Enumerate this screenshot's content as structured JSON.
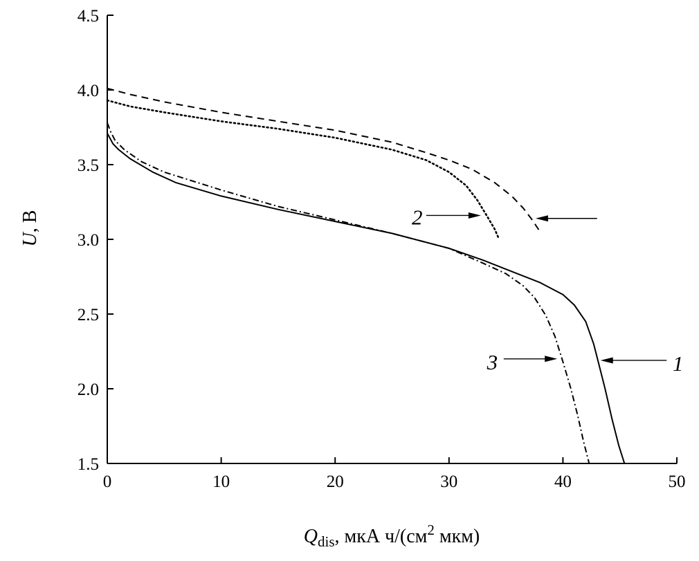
{
  "chart_data": {
    "type": "line",
    "title": "",
    "xlabel": {
      "symbol": "Q",
      "subscript": "dis",
      "units_before_sup": ", мкА ч/(см",
      "superscript": "2",
      "units_after_sup": " мкм)"
    },
    "ylabel": {
      "symbol": "U",
      "units": ", В"
    },
    "xlim": [
      0,
      50
    ],
    "ylim": [
      1.5,
      4.5
    ],
    "xticks": [
      0,
      10,
      20,
      30,
      40,
      50
    ],
    "xtick_labels": [
      "0",
      "10",
      "20",
      "30",
      "40",
      "50"
    ],
    "yticks": [
      1.5,
      2.0,
      2.5,
      3.0,
      3.5,
      4.0,
      4.5
    ],
    "ytick_labels": [
      "1.5",
      "2.0",
      "2.5",
      "3.0",
      "3.5",
      "4.0",
      "4.5"
    ],
    "grid": false,
    "legend": "none",
    "series": [
      {
        "name": "1",
        "style": "solid",
        "color": "#000000",
        "x": [
          0,
          0.5,
          1,
          2,
          4,
          6,
          10,
          15,
          20,
          25,
          30,
          33,
          36,
          38,
          40,
          41,
          42,
          42.7,
          43.2,
          43.7,
          44.3,
          44.9,
          45.4
        ],
        "y": [
          3.71,
          3.64,
          3.6,
          3.54,
          3.45,
          3.38,
          3.29,
          3.2,
          3.12,
          3.04,
          2.94,
          2.86,
          2.77,
          2.71,
          2.63,
          2.56,
          2.45,
          2.3,
          2.15,
          2.0,
          1.8,
          1.62,
          1.5
        ]
      },
      {
        "name": "2",
        "style": "dotted",
        "color": "#000000",
        "x": [
          0,
          2,
          5,
          10,
          15,
          20,
          25,
          28,
          30,
          31.5,
          32.5,
          33.3,
          34,
          34.4
        ],
        "y": [
          3.93,
          3.89,
          3.85,
          3.79,
          3.74,
          3.68,
          3.6,
          3.53,
          3.45,
          3.36,
          3.26,
          3.16,
          3.07,
          3.0
        ]
      },
      {
        "name": "3",
        "style": "dashdot",
        "color": "#000000",
        "x": [
          0,
          0.3,
          0.7,
          1.5,
          3,
          5,
          10,
          15,
          20,
          25,
          30,
          33,
          35,
          36.5,
          37.5,
          38.5,
          39.3,
          40,
          40.7,
          41.3,
          41.8,
          42.3
        ],
        "y": [
          3.78,
          3.72,
          3.66,
          3.6,
          3.52,
          3.45,
          3.33,
          3.22,
          3.13,
          3.04,
          2.94,
          2.84,
          2.77,
          2.69,
          2.61,
          2.49,
          2.35,
          2.18,
          2.0,
          1.82,
          1.65,
          1.5
        ]
      },
      {
        "name": "",
        "style": "dashed",
        "color": "#000000",
        "x": [
          0,
          2,
          5,
          10,
          15,
          20,
          25,
          28,
          30,
          32,
          34,
          35.5,
          36.5,
          37.3,
          38
        ],
        "y": [
          4.01,
          3.97,
          3.92,
          3.85,
          3.79,
          3.73,
          3.65,
          3.58,
          3.53,
          3.47,
          3.38,
          3.29,
          3.21,
          3.13,
          3.05
        ]
      }
    ],
    "annotations": [
      {
        "label": "1",
        "target_series": "1"
      },
      {
        "label": "2",
        "target_series": "2"
      },
      {
        "label": "3",
        "target_series": "3"
      },
      {
        "label": "",
        "target_series": "dashed"
      }
    ]
  }
}
